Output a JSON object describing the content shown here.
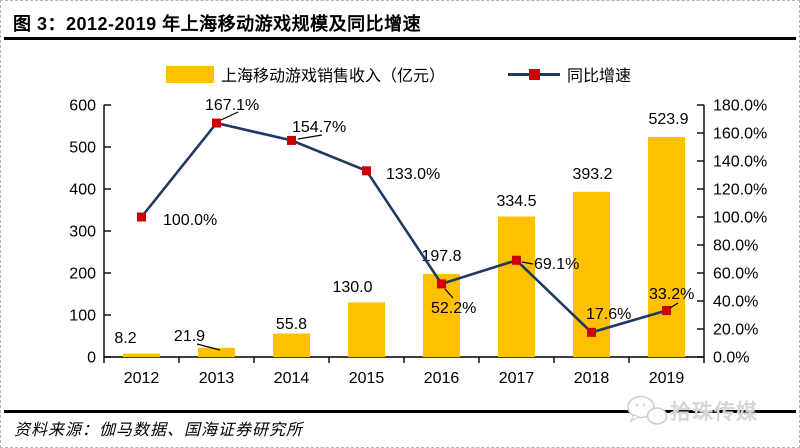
{
  "figure": {
    "title": "图 3：2012-2019 年上海移动游戏规模及同比增速",
    "source": "资料来源：伽马数据、国海证券研究所",
    "watermark": "拾珠传媒"
  },
  "legend": {
    "items": [
      {
        "label": "上海移动游戏销售收入（亿元）",
        "swatch": "bar"
      },
      {
        "label": "同比增速",
        "swatch": "line-with-marker"
      }
    ]
  },
  "colors": {
    "bar": "#FFC000",
    "line": "#1F3864",
    "marker": "#CC0000",
    "axis": "#000000",
    "label_text": "#000000",
    "watermark": "#D6D6D6"
  },
  "chart_data": {
    "type": "combo-bar-line",
    "title": "图 3：2012-2019 年上海移动游戏规模及同比增速",
    "categories": [
      "2012",
      "2013",
      "2014",
      "2015",
      "2016",
      "2017",
      "2018",
      "2019"
    ],
    "series": [
      {
        "name": "上海移动游戏销售收入（亿元）",
        "chart": "bar",
        "axis": "left",
        "color": "#FFC000",
        "values": [
          8.2,
          21.9,
          55.8,
          130.0,
          197.8,
          334.5,
          393.2,
          523.9
        ],
        "data_labels": [
          "8.2",
          "21.9",
          "55.8",
          "130.0",
          "197.8",
          "334.5",
          "393.2",
          "523.9"
        ]
      },
      {
        "name": "同比增速",
        "chart": "line",
        "axis": "right",
        "color": "#1F3864",
        "marker": "square",
        "marker_color": "#CC0000",
        "values": [
          100.0,
          167.1,
          154.7,
          133.0,
          52.2,
          69.1,
          17.6,
          33.2
        ],
        "data_labels": [
          "100.0%",
          "167.1%",
          "154.7%",
          "133.0%",
          "52.2%",
          "69.1%",
          "17.6%",
          "33.2%"
        ]
      }
    ],
    "left_axis": {
      "min": 0,
      "max": 600,
      "step": 100,
      "tick_labels": [
        "0",
        "100",
        "200",
        "300",
        "400",
        "500",
        "600"
      ]
    },
    "right_axis": {
      "min": 0,
      "max": 180,
      "step": 20,
      "tick_labels": [
        "0.0%",
        "20.0%",
        "40.0%",
        "60.0%",
        "80.0%",
        "100.0%",
        "120.0%",
        "140.0%",
        "160.0%",
        "180.0%"
      ]
    },
    "legend_position": "top",
    "grid": "off"
  }
}
